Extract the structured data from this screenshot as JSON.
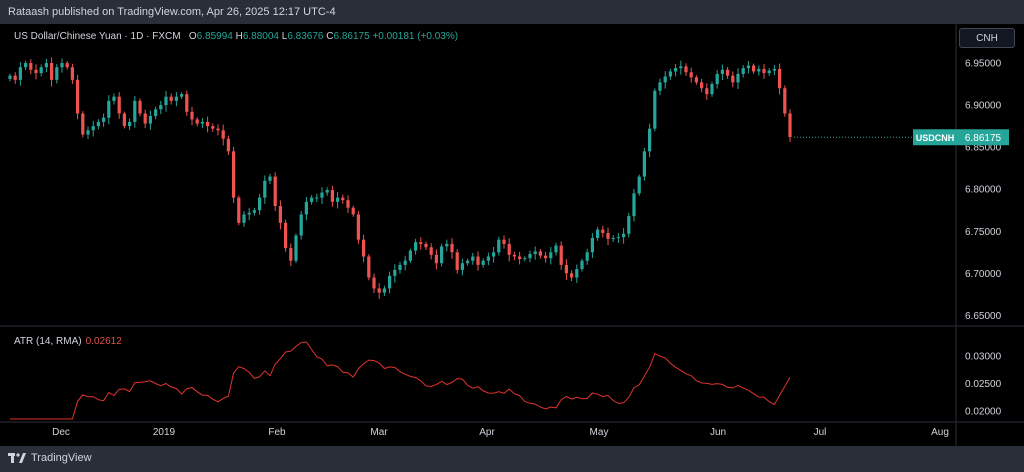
{
  "header": {
    "publish_text": "Rataash published on TradingView.com, Apr 26, 2025 12:17 UTC-4"
  },
  "legend": {
    "title": "US Dollar/Chinese Yuan · 1D · FXCM",
    "open_label": "O",
    "open": "6.85994",
    "high_label": "H",
    "high": "6.88004",
    "low_label": "L",
    "low": "6.83676",
    "close_label": "C",
    "close": "6.86175",
    "change": "+0.00181 (+0.03%)"
  },
  "currency_button": "CNH",
  "price_tag": {
    "symbol": "USDCNH",
    "value": "6.86175"
  },
  "atr": {
    "label": "ATR (14, RMA)",
    "value": "0.02612"
  },
  "footer": {
    "brand": "TradingView"
  },
  "colors": {
    "up": "#26a69a",
    "down": "#ef5350",
    "atr_line": "#e0332f",
    "background": "#000000",
    "text": "#d1d4dc"
  },
  "chart_data": [
    {
      "type": "candlestick",
      "title": "US Dollar/Chinese Yuan · 1D · FXCM",
      "symbol": "USDCNH",
      "x_tick_labels": [
        "Dec",
        "2019",
        "Feb",
        "Mar",
        "Apr",
        "May",
        "Jun",
        "Jul",
        "Aug"
      ],
      "y_tick_labels": [
        "6.95000",
        "6.90000",
        "6.85000",
        "6.80000",
        "6.75000",
        "6.70000",
        "6.65000"
      ],
      "ylim": [
        6.635,
        6.975
      ],
      "last_value": 6.86175,
      "closes": [
        6.935,
        6.93,
        6.945,
        6.95,
        6.942,
        6.938,
        6.945,
        6.95,
        6.93,
        6.945,
        6.95,
        6.945,
        6.93,
        6.89,
        6.865,
        6.87,
        6.875,
        6.88,
        6.885,
        6.905,
        6.91,
        6.89,
        6.875,
        6.88,
        6.905,
        6.89,
        6.878,
        6.887,
        6.895,
        6.9,
        6.91,
        6.905,
        6.91,
        6.913,
        6.892,
        6.883,
        6.878,
        6.88,
        6.875,
        6.872,
        6.87,
        6.86,
        6.845,
        6.79,
        6.76,
        6.77,
        6.772,
        6.775,
        6.79,
        6.81,
        6.815,
        6.78,
        6.76,
        6.73,
        6.715,
        6.745,
        6.77,
        6.785,
        6.79,
        6.79,
        6.796,
        6.799,
        6.785,
        6.79,
        6.787,
        6.778,
        6.77,
        6.74,
        6.72,
        6.695,
        6.682,
        6.677,
        6.682,
        6.697,
        6.704,
        6.71,
        6.715,
        6.727,
        6.737,
        6.735,
        6.731,
        6.722,
        6.712,
        6.732,
        6.735,
        6.725,
        6.704,
        6.712,
        6.715,
        6.72,
        6.71,
        6.715,
        6.72,
        6.725,
        6.74,
        6.735,
        6.722,
        6.72,
        6.717,
        6.718,
        6.723,
        6.726,
        6.721,
        6.718,
        6.725,
        6.733,
        6.71,
        6.7,
        6.695,
        6.705,
        6.715,
        6.725,
        6.742,
        6.752,
        6.748,
        6.741,
        6.742,
        6.743,
        6.747,
        6.768,
        6.795,
        6.815,
        6.845,
        6.872,
        6.917,
        6.927,
        6.934,
        6.94,
        6.944,
        6.946,
        6.939,
        6.933,
        6.927,
        6.92,
        6.913,
        6.925,
        6.937,
        6.942,
        6.935,
        6.927,
        6.937,
        6.944,
        6.947,
        6.94,
        6.943,
        6.938,
        6.941,
        6.943,
        6.92,
        6.89,
        6.862
      ],
      "series": [
        {
          "name": "ATR (14, RMA)",
          "last_value": 0.02612,
          "ylim": [
            0.0185,
            0.0335
          ],
          "y_tick_labels": [
            "0.03000",
            "0.02500",
            "0.02000"
          ]
        }
      ]
    }
  ]
}
